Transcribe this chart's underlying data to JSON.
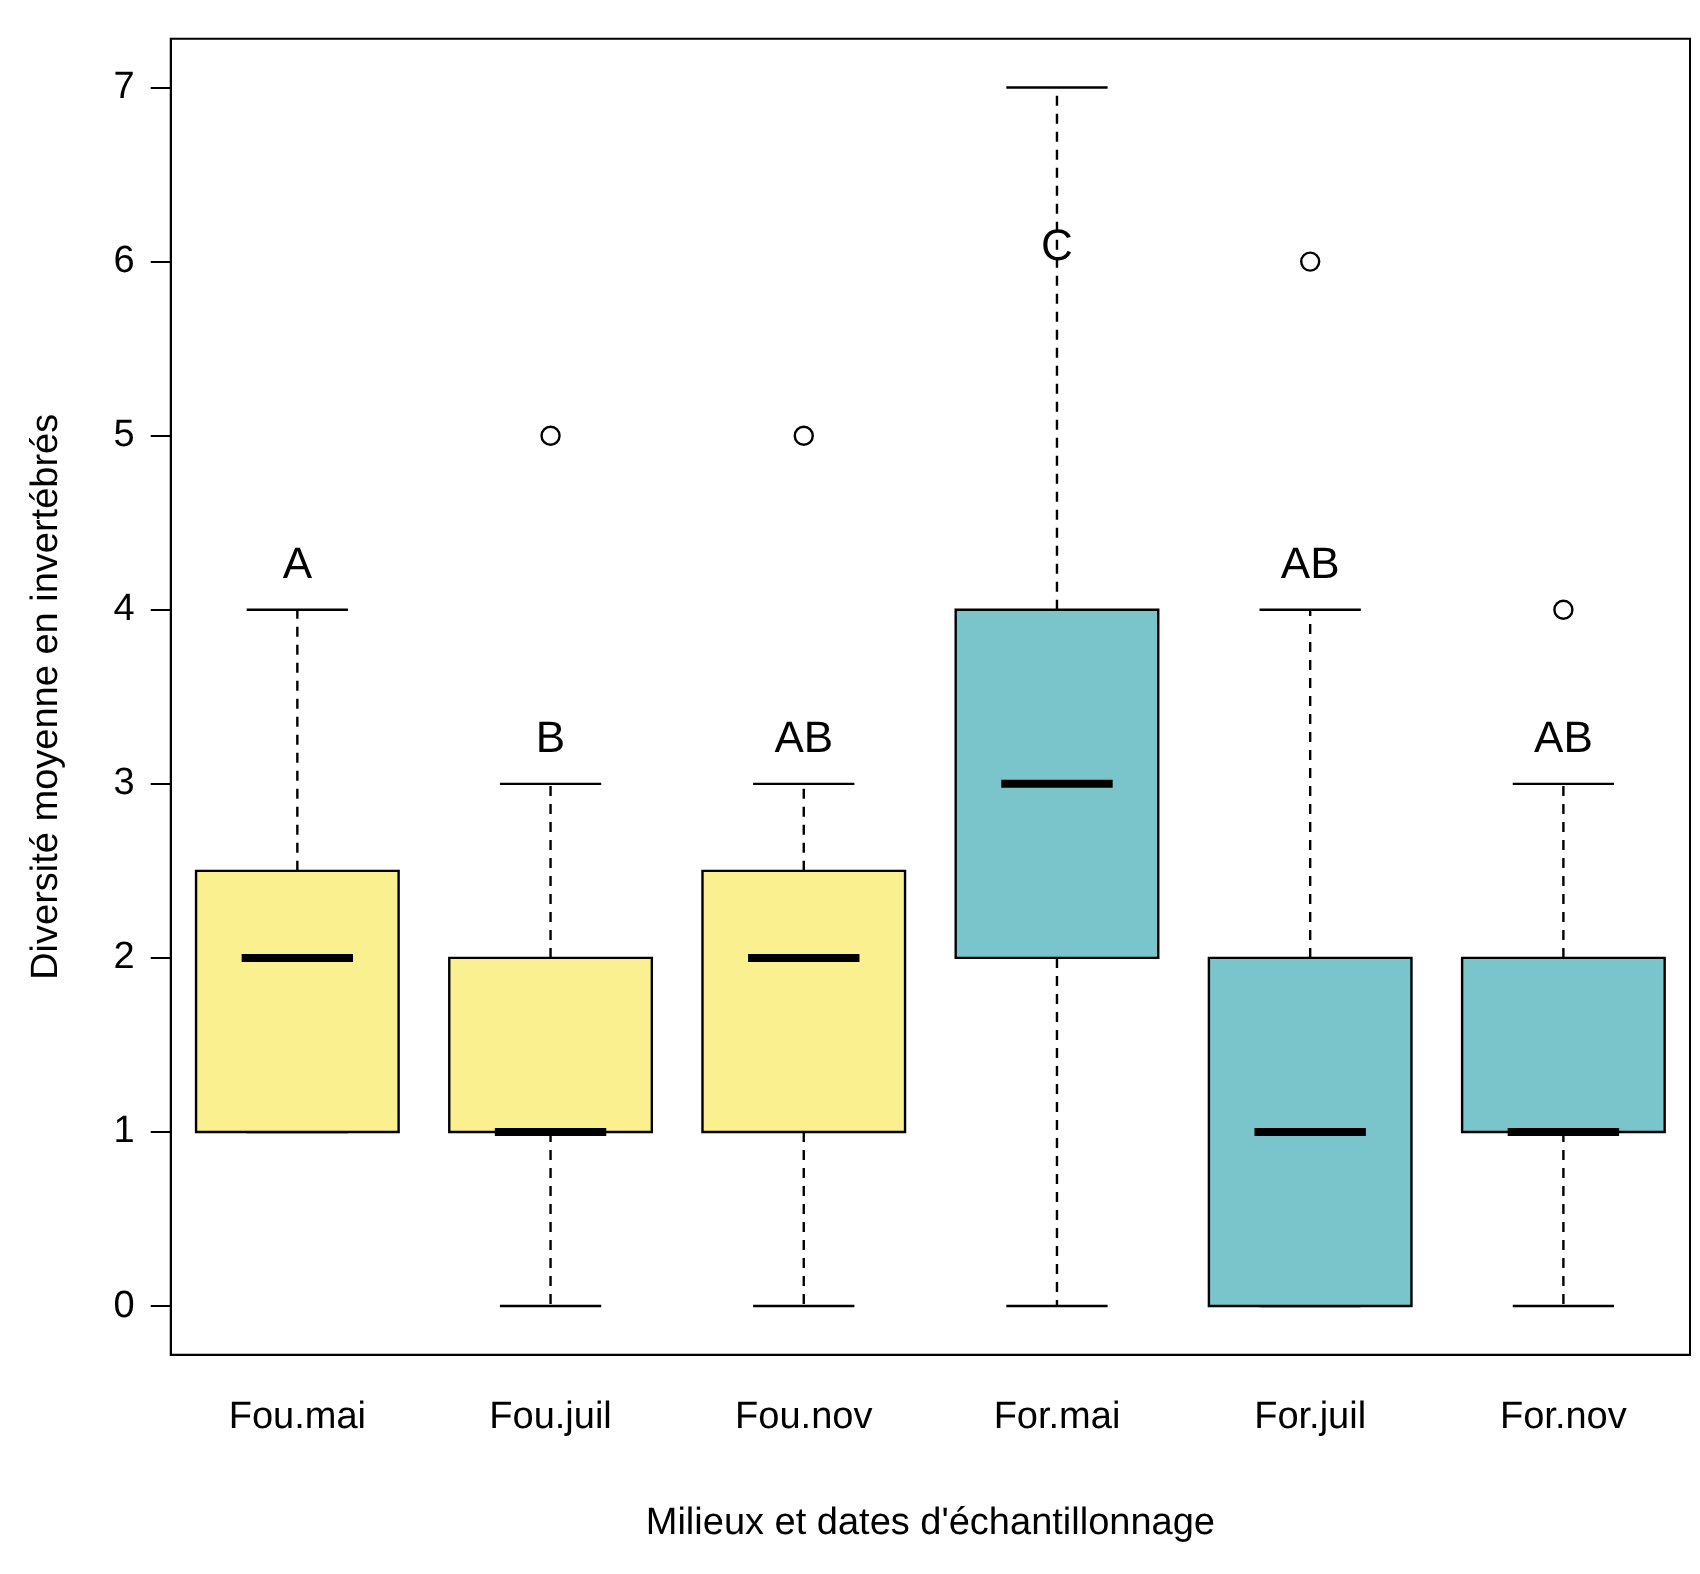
{
  "chart_data": {
    "type": "box",
    "xlabel": "Milieux et dates d'échantillonnage",
    "ylabel": "Diversité moyenne en invertébrés",
    "categories": [
      "Fou.mai",
      "Fou.juil",
      "Fou.nov",
      "For.mai",
      "For.juil",
      "For.nov"
    ],
    "colors": [
      "#fbf08f",
      "#fbf08f",
      "#fbf08f",
      "#7ac4cc",
      "#7ac4cc",
      "#7ac4cc"
    ],
    "boxes": [
      {
        "low": 1,
        "q1": 1,
        "median": 2,
        "q3": 2.5,
        "high": 4
      },
      {
        "low": 0,
        "q1": 1,
        "median": 1,
        "q3": 2,
        "high": 3,
        "outliers": [
          5
        ]
      },
      {
        "low": 0,
        "q1": 1,
        "median": 2,
        "q3": 2.5,
        "high": 3,
        "outliers": [
          5
        ]
      },
      {
        "low": 0,
        "q1": 2,
        "median": 3,
        "q3": 4,
        "high": 7
      },
      {
        "low": 0,
        "q1": 0,
        "median": 1,
        "q3": 2,
        "high": 4,
        "outliers": [
          6
        ]
      },
      {
        "low": 0,
        "q1": 1,
        "median": 1,
        "q3": 2,
        "high": 3,
        "outliers": [
          4
        ]
      }
    ],
    "ylim": [
      -0.28,
      7.28
    ],
    "yticks": [
      0,
      1,
      2,
      3,
      4,
      5,
      6,
      7
    ],
    "grid": false,
    "legend": false,
    "annotations": [
      "A",
      "B",
      "AB",
      "C",
      "AB",
      "AB"
    ]
  }
}
